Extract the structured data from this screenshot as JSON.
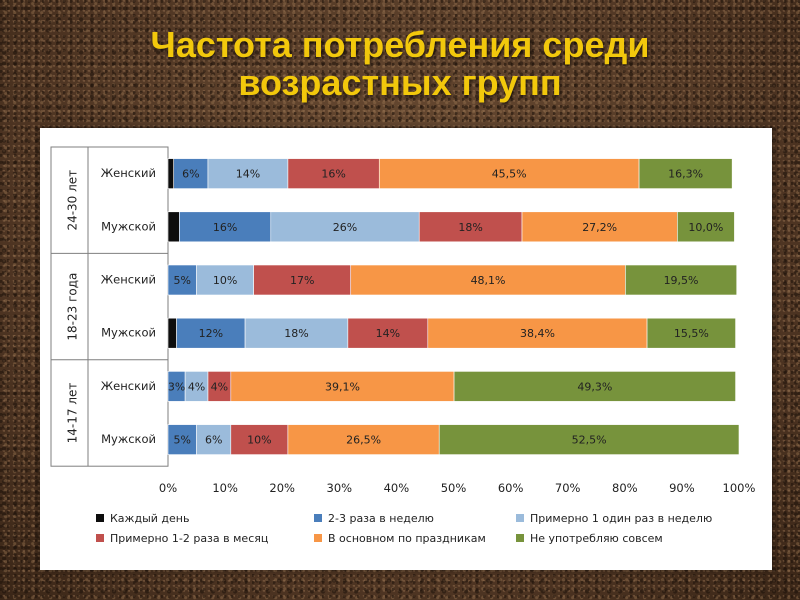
{
  "title": {
    "line1": "Частота потребления среди",
    "line2": "возрастных групп"
  },
  "chart_data": {
    "type": "bar",
    "orientation": "horizontal",
    "stacked": true,
    "xlim": [
      0,
      100
    ],
    "x_ticks": [
      "0%",
      "10%",
      "20%",
      "30%",
      "40%",
      "50%",
      "60%",
      "70%",
      "80%",
      "90%",
      "100%"
    ],
    "grid": false,
    "legend_position": "bottom",
    "groups": [
      {
        "label": "24-30 лет",
        "rows": [
          "Женский",
          "Мужской"
        ]
      },
      {
        "label": "18-23 года",
        "rows": [
          "Женский",
          "Мужской"
        ]
      },
      {
        "label": "14-17 лет",
        "rows": [
          "Женский",
          "Мужской"
        ]
      }
    ],
    "categories": [
      "24-30 лет Женский",
      "24-30 лет Мужской",
      "18-23 года Женский",
      "18-23 года Мужской",
      "14-17 лет Женский",
      "14-17 лет Мужской"
    ],
    "series": [
      {
        "name": "Каждый день",
        "color": "#0d0d0d",
        "values": [
          1,
          2,
          0,
          1.5,
          0,
          0
        ],
        "labels": [
          "",
          "",
          "",
          "",
          "",
          ""
        ]
      },
      {
        "name": "2-3 раза в неделю",
        "color": "#4a7ebb",
        "values": [
          6,
          16,
          5,
          12,
          3,
          5
        ],
        "labels": [
          "6%",
          "16%",
          "5%",
          "12%",
          "3%",
          "5%"
        ]
      },
      {
        "name": "Примерно 1 один раз в неделю",
        "color": "#9bbbdb",
        "values": [
          14,
          26,
          10,
          18,
          4,
          6
        ],
        "labels": [
          "14%",
          "26%",
          "10%",
          "18%",
          "4%",
          "6%"
        ]
      },
      {
        "name": "Примерно 1-2 раза в месяц",
        "color": "#c0504d",
        "values": [
          16,
          18,
          17,
          14,
          4,
          10
        ],
        "labels": [
          "16%",
          "18%",
          "17%",
          "14%",
          "4%",
          "10%"
        ]
      },
      {
        "name": "В основном по праздникам",
        "color": "#f79646",
        "values": [
          45.5,
          27.2,
          48.1,
          38.4,
          39.1,
          26.5
        ],
        "labels": [
          "45,5%",
          "27,2%",
          "48,1%",
          "38,4%",
          "39,1%",
          "26,5%"
        ]
      },
      {
        "name": "Не употребляю совсем",
        "color": "#77933c",
        "values": [
          16.3,
          10.0,
          19.5,
          15.5,
          49.3,
          52.5
        ],
        "labels": [
          "16,3%",
          "10,0%",
          "19,5%",
          "15,5%",
          "49,3%",
          "52,5%"
        ]
      }
    ]
  }
}
